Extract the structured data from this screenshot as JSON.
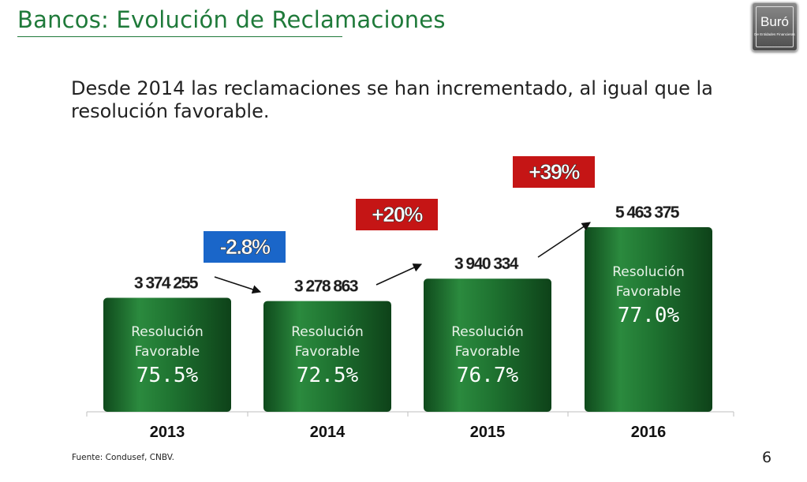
{
  "header": {
    "title": "Bancos: Evolución de Reclamaciones",
    "logo_name": "Buró",
    "logo_subtitle": "De Entidades Financieras"
  },
  "subtitle": "Desde 2014 las reclamaciones se han incrementado, al igual que la resolución favorable.",
  "footer": {
    "source": "Fuente: Condusef, CNBV.",
    "page_number": "6"
  },
  "colors": {
    "title_green": "#1f7a3a",
    "bar_green": "#1b6b2b",
    "decrease_badge": "#1a66c9",
    "increase_badge": "#c51515"
  },
  "chart_data": {
    "type": "bar",
    "categories": [
      "2013",
      "2014",
      "2015",
      "2016"
    ],
    "values": [
      3374255,
      3278863,
      3940334,
      5463375
    ],
    "value_labels": [
      "3 374 255",
      "3 278 863",
      "3 940 334",
      "5 463 375"
    ],
    "bar_text_line1": "Resolución",
    "bar_text_line2": "Favorable",
    "resolution_favorable": [
      75.5,
      72.5,
      76.7,
      77.0
    ],
    "resolution_labels": [
      "75.5%",
      "72.5%",
      "76.7%",
      "77.0%"
    ],
    "changes": [
      {
        "label": "-2.8%",
        "direction": "down"
      },
      {
        "label": "+20%",
        "direction": "up"
      },
      {
        "label": "+39%",
        "direction": "up"
      }
    ],
    "title": "",
    "xlabel": "",
    "ylabel": "",
    "grid": false
  }
}
